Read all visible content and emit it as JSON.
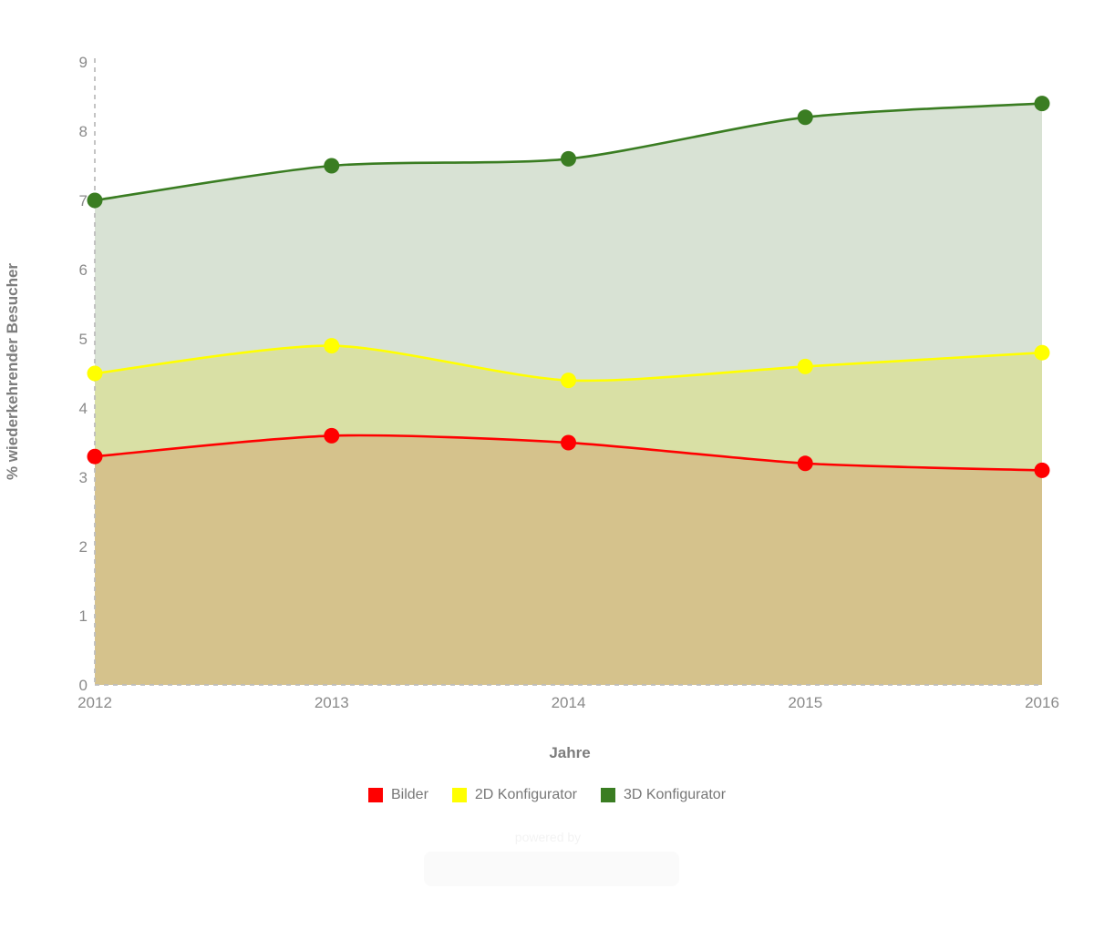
{
  "page": {
    "background": "#ffffff"
  },
  "watermark": {
    "text": "powered by"
  },
  "legend": {
    "text_color": "#777777",
    "position": "bottom-center"
  },
  "axis_style": {
    "dashed_line_color": "#bdbdbd",
    "tick_text_color": "#8a8a8a",
    "title_text_color": "#7d7d7d"
  },
  "chart_data": {
    "type": "area",
    "title": "",
    "xlabel": "Jahre",
    "ylabel": "% wiederkehrender Besucher",
    "x": [
      2012,
      2013,
      2014,
      2015,
      2016
    ],
    "x_tick_labels": [
      "2012",
      "2013",
      "2014",
      "2015",
      "2016"
    ],
    "ylim": [
      0,
      9
    ],
    "y_tick_step": 1,
    "y_tick_labels": [
      "0",
      "1",
      "2",
      "3",
      "4",
      "5",
      "6",
      "7",
      "8",
      "9"
    ],
    "grid": false,
    "legend_position": "bottom",
    "series": [
      {
        "name": "Bilder",
        "line_color": "#ff0000",
        "area_color": "#d5c28c",
        "values": [
          3.3,
          3.6,
          3.5,
          3.2,
          3.1
        ]
      },
      {
        "name": "2D Konfigurator",
        "line_color": "#ffff00",
        "area_color": "#d9e0a5",
        "values": [
          4.5,
          4.9,
          4.4,
          4.6,
          4.8
        ]
      },
      {
        "name": "3D Konfigurator",
        "line_color": "#3a7d22",
        "area_color": "#d8e2d4",
        "values": [
          7.0,
          7.5,
          7.6,
          8.2,
          8.4
        ]
      }
    ],
    "paint_order": "back-to-front: 3D Konfigurator, 2D Konfigurator, Bilder"
  }
}
